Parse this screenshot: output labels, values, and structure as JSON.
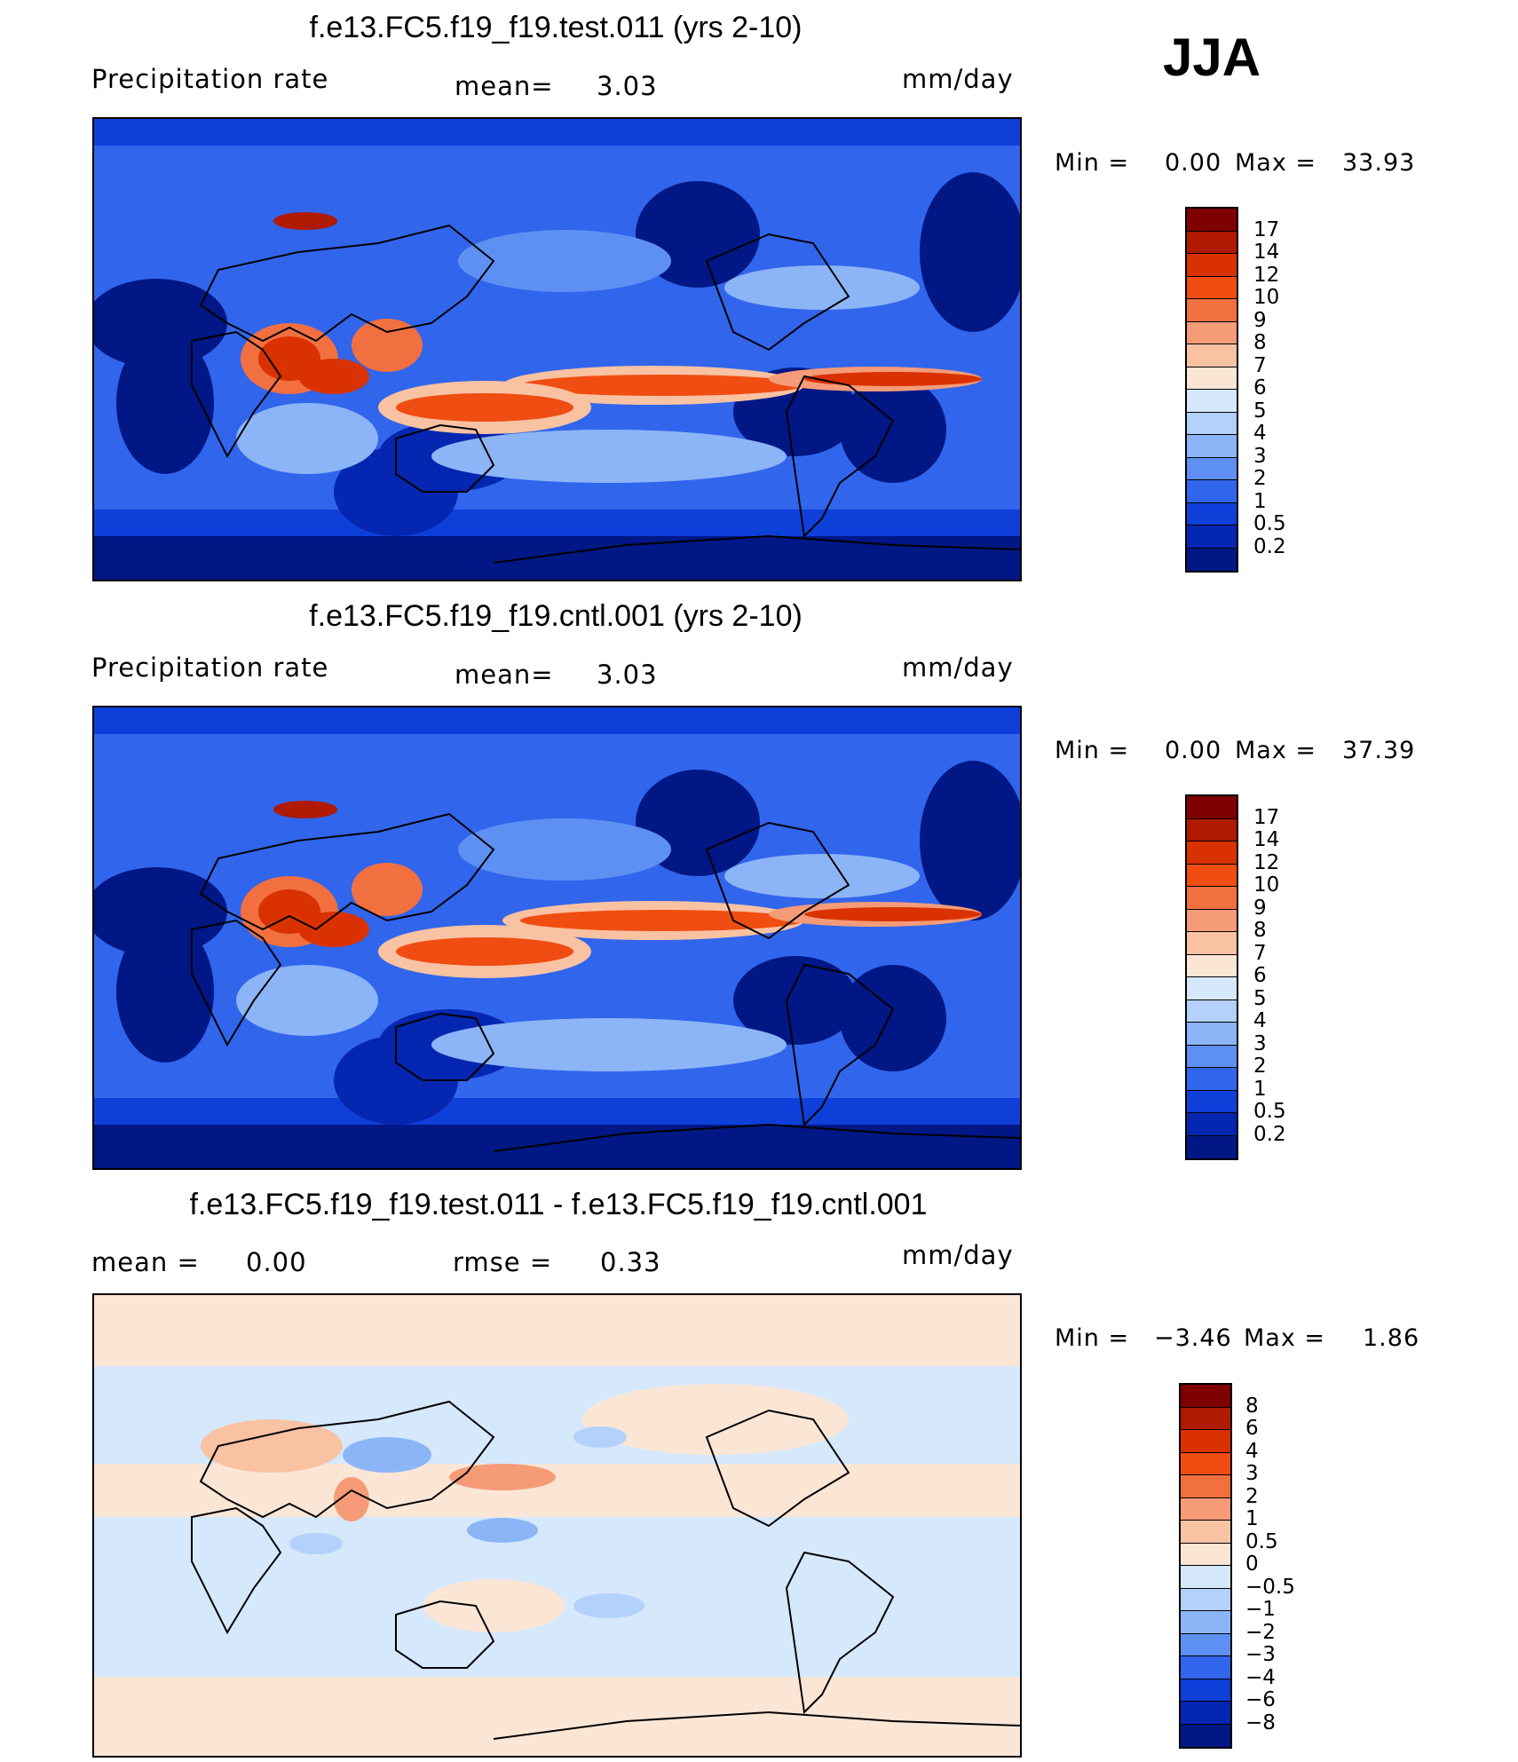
{
  "season": "JJA",
  "panels": [
    {
      "title": "f.e13.FC5.f19_f19.test.011 (yrs 2-10)",
      "variable": "Precipitation  rate",
      "mean_label": "mean=",
      "mean_value": "3.03",
      "units": "mm/day",
      "min_label": "Min  =",
      "min_value": "0.00",
      "max_label": "Max  =",
      "max_value": "33.93"
    },
    {
      "title": "f.e13.FC5.f19_f19.cntl.001 (yrs 2-10)",
      "variable": "Precipitation  rate",
      "mean_label": "mean=",
      "mean_value": "3.03",
      "units": "mm/day",
      "min_label": "Min  =",
      "min_value": "0.00",
      "max_label": "Max  =",
      "max_value": "37.39"
    },
    {
      "title": "f.e13.FC5.f19_f19.test.011 - f.e13.FC5.f19_f19.cntl.001",
      "mean_label": "mean  =",
      "mean_value": "0.00",
      "rmse_label": "rmse  =",
      "rmse_value": "0.33",
      "units": "mm/day",
      "min_label": "Min  =",
      "min_value": "−3.46",
      "max_label": "Max  =",
      "max_value": "1.86"
    }
  ],
  "colorbar_precip": {
    "labels": [
      "17",
      "14",
      "12",
      "10",
      "9",
      "8",
      "7",
      "6",
      "5",
      "4",
      "3",
      "2",
      "1",
      "0.5",
      "0.2"
    ],
    "colors": [
      "#7f0000",
      "#b01a00",
      "#d93200",
      "#f04d12",
      "#f27040",
      "#f59b78",
      "#f8c2a3",
      "#fbe6d6",
      "#d6e8fb",
      "#b3d1fa",
      "#8cb5f7",
      "#5d90f2",
      "#3165ec",
      "#0f3fd9",
      "#0526b0",
      "#001785"
    ]
  },
  "colorbar_diff": {
    "labels": [
      "8",
      "6",
      "4",
      "3",
      "2",
      "1",
      "0.5",
      "0",
      "−0.5",
      "−1",
      "−2",
      "−3",
      "−4",
      "−6",
      "−8"
    ],
    "colors": [
      "#7f0000",
      "#b01a00",
      "#d93200",
      "#f04d12",
      "#f27040",
      "#f59b78",
      "#f8c2a3",
      "#fbe6d6",
      "#d6e8fb",
      "#b3d1fa",
      "#8cb5f7",
      "#5d90f2",
      "#3165ec",
      "#0f3fd9",
      "#0526b0",
      "#001785"
    ]
  }
}
